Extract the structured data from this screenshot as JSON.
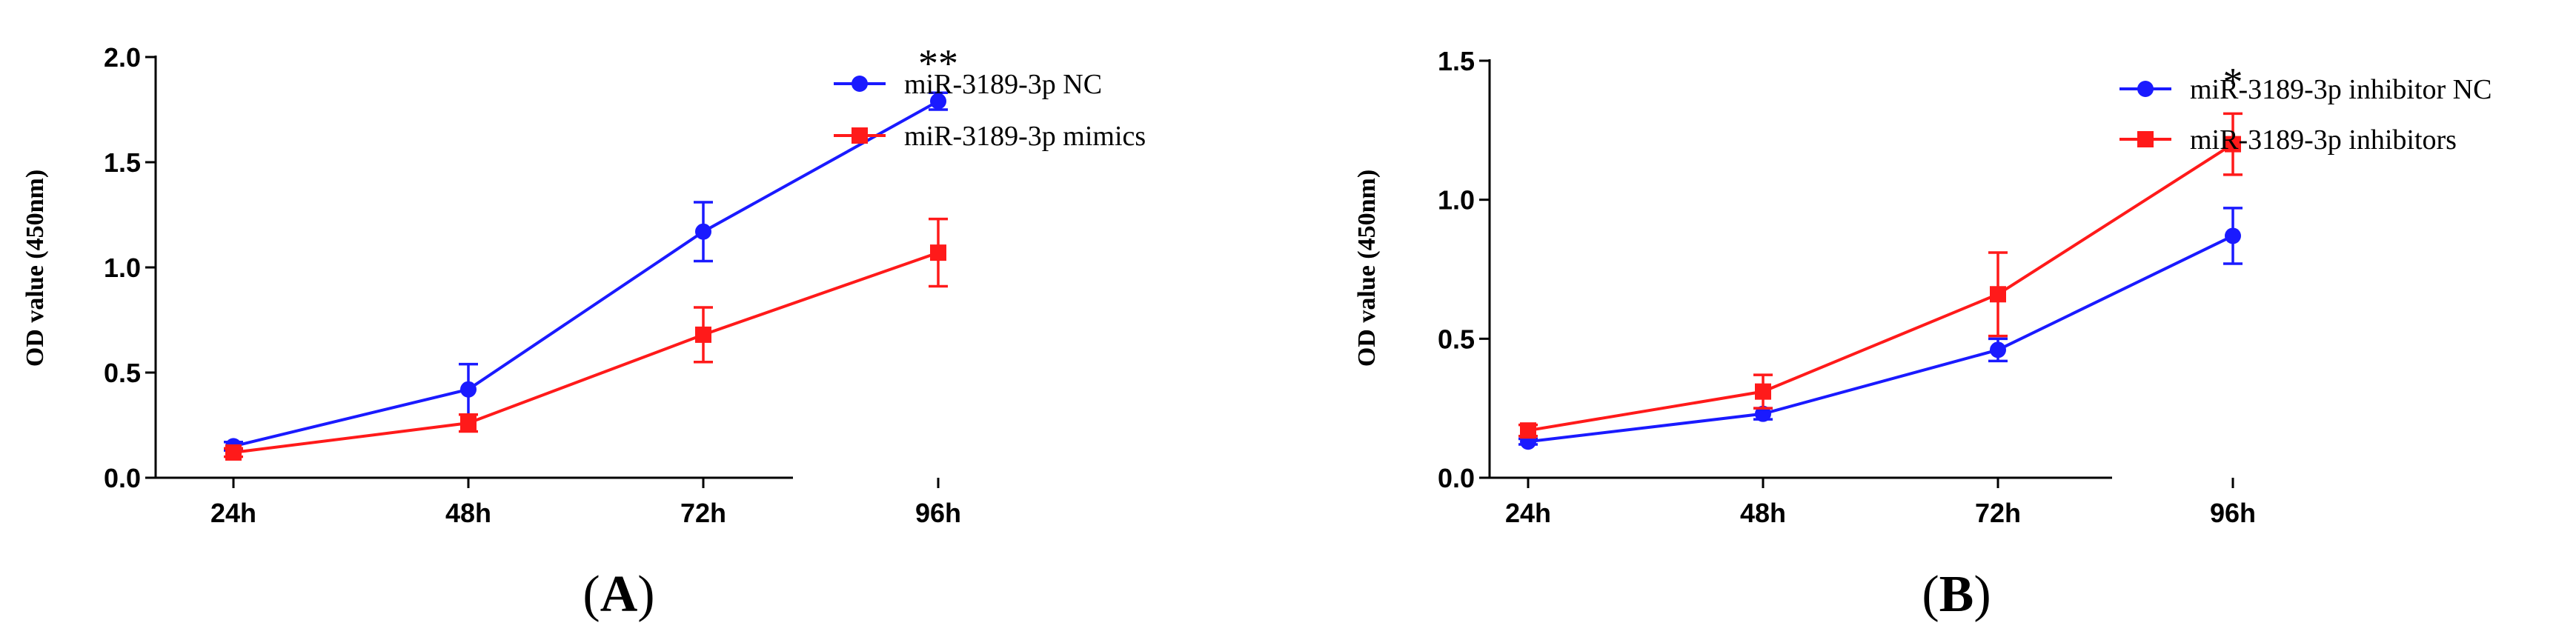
{
  "chart_data": [
    {
      "type": "line",
      "panel_label": {
        "open": "(",
        "letter": "A",
        "close": ")"
      },
      "ylabel": "OD value (450nm)",
      "xlabel": "",
      "categories": [
        "24h",
        "48h",
        "72h",
        "96h"
      ],
      "ylim": [
        0,
        2.0
      ],
      "yticks": [
        "0.0",
        "0.5",
        "1.0",
        "1.5",
        "2.0"
      ],
      "annotation": {
        "text": "**",
        "category": "96h"
      },
      "series": [
        {
          "name": "miR-3189-3p NC",
          "color": "#1a1aff",
          "marker": "circle",
          "values": [
            0.15,
            0.42,
            1.17,
            1.79
          ],
          "errors": [
            0.02,
            0.12,
            0.14,
            0.04
          ]
        },
        {
          "name": "miR-3189-3p mimics",
          "color": "#ff1a1a",
          "marker": "square",
          "values": [
            0.12,
            0.26,
            0.68,
            1.07
          ],
          "errors": [
            0.02,
            0.04,
            0.13,
            0.16
          ]
        }
      ]
    },
    {
      "type": "line",
      "panel_label": {
        "open": "(",
        "letter": "B",
        "close": ")"
      },
      "ylabel": "OD value (450nm)",
      "xlabel": "",
      "categories": [
        "24h",
        "48h",
        "72h",
        "96h"
      ],
      "ylim": [
        0,
        1.5
      ],
      "yticks": [
        "0.0",
        "0.5",
        "1.0",
        "1.5"
      ],
      "annotation": {
        "text": "*",
        "category": "96h"
      },
      "series": [
        {
          "name": "miR-3189-3p inhibitor NC",
          "color": "#1a1aff",
          "marker": "circle",
          "values": [
            0.13,
            0.23,
            0.46,
            0.87
          ],
          "errors": [
            0.01,
            0.02,
            0.04,
            0.1
          ]
        },
        {
          "name": "miR-3189-3p inhibitors",
          "color": "#ff1a1a",
          "marker": "square",
          "values": [
            0.17,
            0.31,
            0.66,
            1.2
          ],
          "errors": [
            0.02,
            0.06,
            0.15,
            0.11
          ]
        }
      ]
    }
  ]
}
